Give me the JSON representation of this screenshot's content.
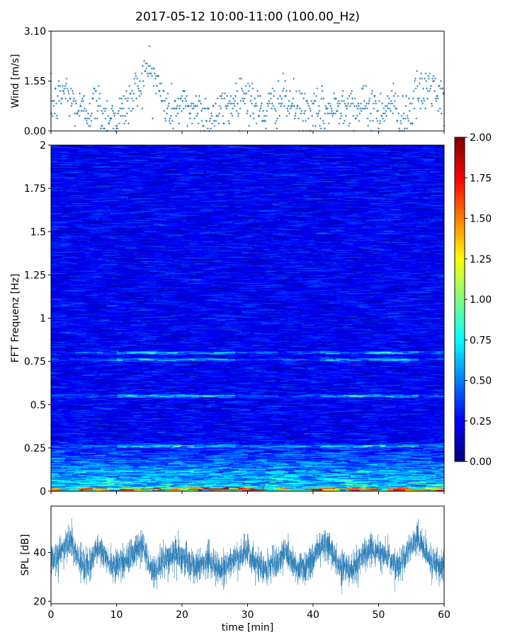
{
  "title": "2017-05-12 10:00-11:00 (100.00_Hz)",
  "colors": {
    "series": "#1f77b4",
    "axis": "#000000",
    "background": "#ffffff"
  },
  "chart_data": [
    {
      "type": "scatter",
      "name": "wind",
      "ylabel": "Wind [m/s]",
      "xlim": [
        0,
        60
      ],
      "ylim": [
        0,
        3.1
      ],
      "yticks": [
        "0.00",
        "1.55",
        "3.10"
      ],
      "marker": "+",
      "trend": {
        "x": [
          0,
          1,
          2,
          3,
          4,
          5,
          6,
          7,
          8,
          9,
          10,
          11,
          12,
          13,
          14,
          15,
          16,
          17,
          18,
          19,
          20,
          21,
          22,
          23,
          24,
          25,
          26,
          27,
          28,
          29,
          30,
          31,
          32,
          33,
          34,
          35,
          36,
          37,
          38,
          39,
          40,
          41,
          42,
          43,
          44,
          45,
          46,
          47,
          48,
          49,
          50,
          51,
          52,
          53,
          54,
          55,
          56,
          57,
          58,
          59,
          60
        ],
        "y": [
          0.8,
          0.9,
          1.3,
          1.0,
          0.7,
          0.6,
          0.7,
          0.9,
          0.5,
          0.5,
          0.4,
          0.6,
          0.9,
          1.3,
          1.6,
          2.0,
          1.6,
          1.0,
          0.6,
          0.7,
          0.8,
          0.7,
          0.7,
          0.6,
          0.5,
          0.5,
          0.6,
          0.8,
          0.9,
          1.2,
          1.1,
          0.8,
          0.6,
          0.6,
          0.8,
          1.0,
          0.9,
          0.8,
          0.6,
          0.6,
          0.5,
          0.5,
          0.7,
          0.6,
          0.8,
          1.0,
          0.8,
          0.7,
          0.7,
          0.8,
          0.6,
          0.8,
          0.9,
          0.5,
          0.5,
          0.7,
          1.1,
          1.2,
          1.5,
          1.0,
          0.8
        ]
      }
    },
    {
      "type": "heatmap",
      "name": "spectrogram",
      "ylabel": "FFT Frequenz [Hz]",
      "xlim": [
        0,
        60
      ],
      "ylim": [
        0,
        2
      ],
      "yticks": [
        "0",
        "0.25",
        "0.5",
        "0.75",
        "1",
        "1.25",
        "1.5",
        "1.75",
        "2"
      ],
      "colorbar": {
        "range": [
          0,
          2
        ],
        "ticks": [
          "0.00",
          "0.25",
          "0.50",
          "0.75",
          "1.00",
          "1.25",
          "1.50",
          "1.75",
          "2.00"
        ],
        "colormap": "jet"
      },
      "features": {
        "band_hz": [
          0.8,
          0.76,
          0.55,
          0.26
        ],
        "strong_band_segments_min": [
          [
            10,
            28
          ],
          [
            41,
            56
          ]
        ],
        "low_freq_energy_below_hz": 0.3
      }
    },
    {
      "type": "line",
      "name": "spl",
      "ylabel": "SPL [dB]",
      "xlabel": "time [min]",
      "xlim": [
        0,
        60
      ],
      "ylim": [
        19,
        59
      ],
      "yticks": [
        "20",
        "40"
      ],
      "xticks": [
        "0",
        "10",
        "20",
        "30",
        "40",
        "50",
        "60"
      ],
      "trend": {
        "x": [
          0,
          1,
          2,
          3,
          4,
          5,
          6,
          7,
          8,
          9,
          10,
          11,
          12,
          13,
          14,
          15,
          16,
          17,
          18,
          19,
          20,
          21,
          22,
          23,
          24,
          25,
          26,
          27,
          28,
          29,
          30,
          31,
          32,
          33,
          34,
          35,
          36,
          37,
          38,
          39,
          40,
          41,
          42,
          43,
          44,
          45,
          46,
          47,
          48,
          49,
          50,
          51,
          52,
          53,
          54,
          55,
          56,
          57,
          58,
          59,
          60
        ],
        "y": [
          37,
          38,
          42,
          46,
          38,
          33,
          35,
          42,
          40,
          36,
          34,
          36,
          38,
          40,
          44,
          34,
          33,
          36,
          38,
          40,
          38,
          36,
          34,
          35,
          37,
          34,
          33,
          35,
          37,
          38,
          40,
          36,
          34,
          33,
          36,
          38,
          40,
          35,
          34,
          35,
          38,
          42,
          44,
          40,
          35,
          34,
          33,
          36,
          40,
          42,
          40,
          38,
          36,
          34,
          38,
          42,
          46,
          40,
          36,
          34,
          35
        ]
      }
    }
  ]
}
